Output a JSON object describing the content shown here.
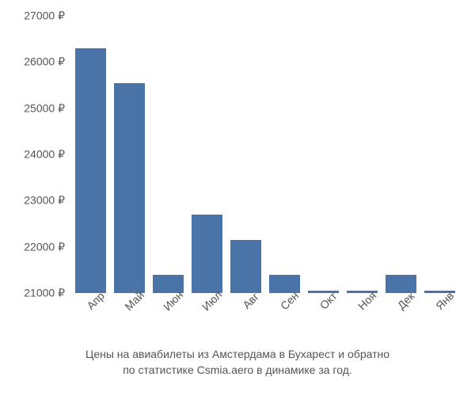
{
  "chart": {
    "type": "bar",
    "categories": [
      "Апр",
      "Май",
      "Июн",
      "Июл",
      "Авг",
      "Сен",
      "Окт",
      "Ноя",
      "Дек",
      "Янв"
    ],
    "values": [
      26300,
      25550,
      21400,
      22700,
      22150,
      21400,
      21050,
      21050,
      21400,
      21050
    ],
    "bar_color": "#4a74a8",
    "background_color": "#ffffff",
    "text_color": "#555555",
    "ylim": [
      21000,
      27000
    ],
    "ytick_step": 1000,
    "ytick_labels": [
      "21000 ₽",
      "22000 ₽",
      "23000 ₽",
      "24000 ₽",
      "25000 ₽",
      "26000 ₽",
      "27000 ₽"
    ],
    "label_fontsize": 14,
    "caption_fontsize": 14,
    "bar_width": 0.78
  },
  "caption": {
    "line1": "Цены на авиабилеты из Амстердама в Бухарест и обратно",
    "line2": "по статистике Csmia.aero в динамике за год."
  }
}
